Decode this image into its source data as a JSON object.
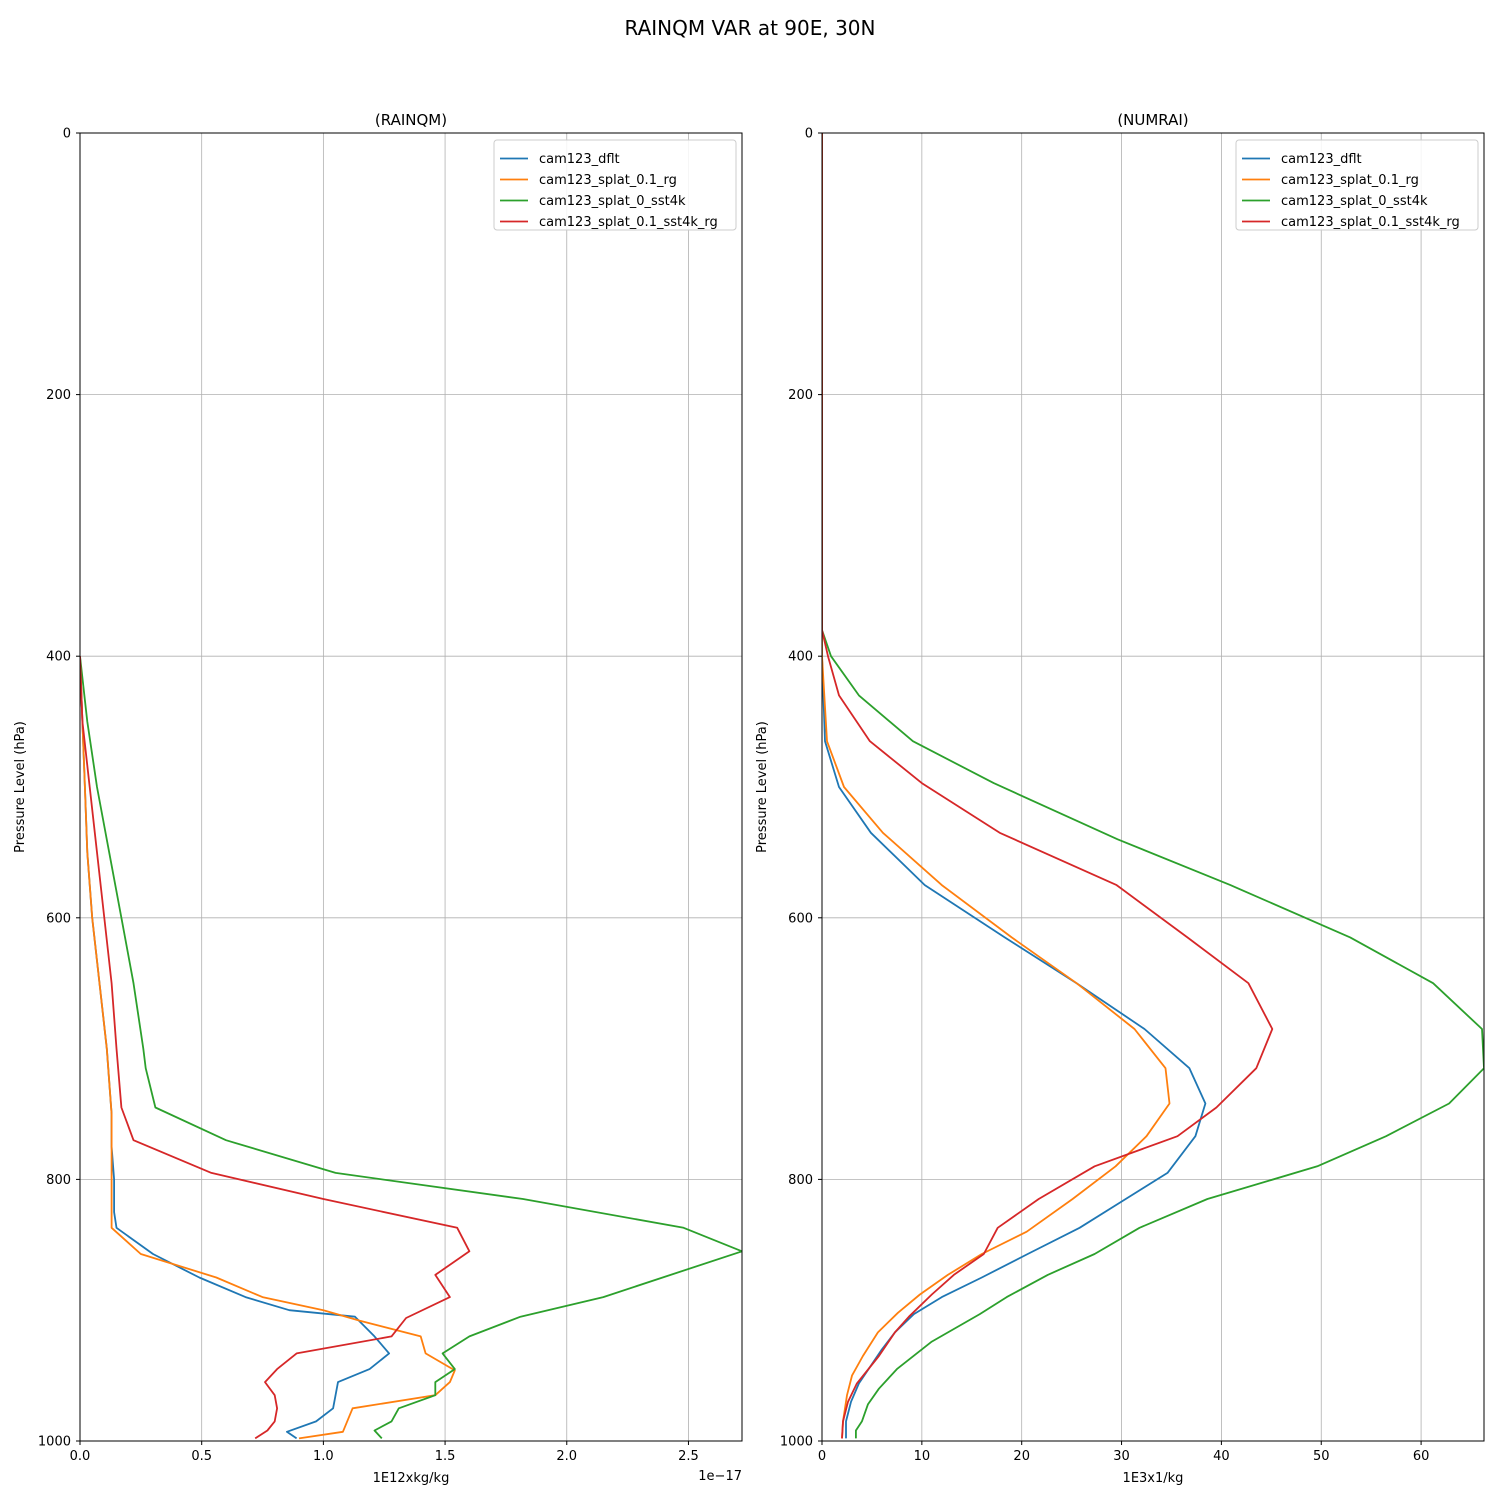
{
  "figure_title": "RAINQM VAR at 90E, 30N",
  "colors": {
    "cam123_dflt": "#1f77b4",
    "cam123_splat_0.1_rg": "#ff7f0e",
    "cam123_splat_0_sst4k": "#2ca02c",
    "cam123_splat_0.1_sst4k_rg": "#d62728"
  },
  "chart_data": [
    {
      "type": "line",
      "title": "(RAINQM)",
      "xlabel": "1E12xkg/kg",
      "ylabel": "Pressure Level (hPa)",
      "x_offset_text": "1e−17",
      "xlim": [
        0,
        2.72
      ],
      "ylim": [
        1000,
        0
      ],
      "y_inverted": true,
      "xticks": [
        0,
        0.5,
        1.0,
        1.5,
        2.0,
        2.5
      ],
      "xtick_labels": [
        "0.0",
        "0.5",
        "1.0",
        "1.5",
        "2.0",
        "2.5"
      ],
      "yticks": [
        0,
        200,
        400,
        600,
        800,
        1000
      ],
      "ytick_labels": [
        "0",
        "200",
        "400",
        "600",
        "800",
        "1000"
      ],
      "grid": true,
      "legend_position": "upper-right",
      "series": [
        {
          "name": "cam123_dflt",
          "points": [
            [
              0,
              400
            ],
            [
              0.01,
              450
            ],
            [
              0.02,
              500
            ],
            [
              0.03,
              550
            ],
            [
              0.05,
              600
            ],
            [
              0.08,
              650
            ],
            [
              0.11,
              700
            ],
            [
              0.12,
              725
            ],
            [
              0.13,
              750
            ],
            [
              0.13,
              775
            ],
            [
              0.14,
              800
            ],
            [
              0.14,
              825
            ],
            [
              0.15,
              837
            ],
            [
              0.3,
              857
            ],
            [
              0.49,
              875
            ],
            [
              0.68,
              890
            ],
            [
              0.86,
              900
            ],
            [
              1.13,
              905
            ],
            [
              1.21,
              920
            ],
            [
              1.27,
              933
            ],
            [
              1.19,
              945
            ],
            [
              1.06,
              955
            ],
            [
              1.04,
              975
            ],
            [
              0.97,
              985
            ],
            [
              0.85,
              993
            ],
            [
              0.89,
              998
            ]
          ]
        },
        {
          "name": "cam123_splat_0.1_rg",
          "points": [
            [
              0,
              400
            ],
            [
              0.01,
              450
            ],
            [
              0.02,
              500
            ],
            [
              0.03,
              550
            ],
            [
              0.05,
              600
            ],
            [
              0.08,
              650
            ],
            [
              0.11,
              700
            ],
            [
              0.12,
              725
            ],
            [
              0.13,
              750
            ],
            [
              0.13,
              775
            ],
            [
              0.13,
              800
            ],
            [
              0.13,
              820
            ],
            [
              0.13,
              837
            ],
            [
              0.25,
              857
            ],
            [
              0.56,
              875
            ],
            [
              0.75,
              890
            ],
            [
              1.0,
              900
            ],
            [
              1.15,
              908
            ],
            [
              1.4,
              920
            ],
            [
              1.42,
              933
            ],
            [
              1.54,
              946
            ],
            [
              1.52,
              955
            ],
            [
              1.46,
              965
            ],
            [
              1.12,
              975
            ],
            [
              1.08,
              993
            ],
            [
              0.9,
              998
            ]
          ]
        },
        {
          "name": "cam123_splat_0_sst4k",
          "points": [
            [
              0,
              400
            ],
            [
              0.03,
              450
            ],
            [
              0.07,
              500
            ],
            [
              0.12,
              550
            ],
            [
              0.17,
              600
            ],
            [
              0.22,
              650
            ],
            [
              0.26,
              700
            ],
            [
              0.27,
              715
            ],
            [
              0.31,
              745
            ],
            [
              0.6,
              770
            ],
            [
              1.05,
              795
            ],
            [
              1.82,
              815
            ],
            [
              2.48,
              837
            ],
            [
              2.72,
              855
            ],
            [
              2.15,
              890
            ],
            [
              1.81,
              905
            ],
            [
              1.6,
              920
            ],
            [
              1.49,
              933
            ],
            [
              1.54,
              945
            ],
            [
              1.46,
              955
            ],
            [
              1.46,
              965
            ],
            [
              1.31,
              975
            ],
            [
              1.28,
              985
            ],
            [
              1.21,
              992
            ],
            [
              1.24,
              998
            ]
          ]
        },
        {
          "name": "cam123_splat_0.1_sst4k_rg",
          "points": [
            [
              0,
              400
            ],
            [
              0.01,
              450
            ],
            [
              0.04,
              500
            ],
            [
              0.07,
              550
            ],
            [
              0.1,
              600
            ],
            [
              0.13,
              650
            ],
            [
              0.15,
              700
            ],
            [
              0.17,
              745
            ],
            [
              0.22,
              770
            ],
            [
              0.54,
              795
            ],
            [
              1.0,
              815
            ],
            [
              1.55,
              837
            ],
            [
              1.6,
              855
            ],
            [
              1.46,
              873
            ],
            [
              1.52,
              890
            ],
            [
              1.34,
              906
            ],
            [
              1.28,
              920
            ],
            [
              0.89,
              933
            ],
            [
              0.81,
              945
            ],
            [
              0.76,
              955
            ],
            [
              0.8,
              965
            ],
            [
              0.81,
              975
            ],
            [
              0.8,
              985
            ],
            [
              0.77,
              992
            ],
            [
              0.72,
              998
            ]
          ]
        }
      ]
    },
    {
      "type": "line",
      "title": "(NUMRAI)",
      "xlabel": "1E3x1/kg",
      "ylabel": "Pressure Level (hPa)",
      "xlim": [
        0,
        66.3
      ],
      "ylim": [
        1000,
        0
      ],
      "y_inverted": true,
      "xticks": [
        0,
        10,
        20,
        30,
        40,
        50,
        60
      ],
      "xtick_labels": [
        "0",
        "10",
        "20",
        "30",
        "40",
        "50",
        "60"
      ],
      "yticks": [
        0,
        200,
        400,
        600,
        800,
        1000
      ],
      "ytick_labels": [
        "0",
        "200",
        "400",
        "600",
        "800",
        "1000"
      ],
      "grid": true,
      "legend_position": "upper-right",
      "series": [
        {
          "name": "cam123_dflt",
          "points": [
            [
              0,
              0
            ],
            [
              0,
              200
            ],
            [
              0,
              400
            ],
            [
              0.3,
              465
            ],
            [
              1.7,
              500
            ],
            [
              4.9,
              535
            ],
            [
              10.3,
              575
            ],
            [
              18.3,
              615
            ],
            [
              25.5,
              650
            ],
            [
              32.3,
              685
            ],
            [
              36.8,
              715
            ],
            [
              38.4,
              742
            ],
            [
              37.4,
              767
            ],
            [
              34.6,
              795
            ],
            [
              30.0,
              817
            ],
            [
              25.8,
              837
            ],
            [
              20.6,
              857
            ],
            [
              16.0,
              875
            ],
            [
              12.0,
              890
            ],
            [
              9.2,
              903
            ],
            [
              7.3,
              917
            ],
            [
              6.0,
              930
            ],
            [
              3.7,
              956
            ],
            [
              2.9,
              970
            ],
            [
              2.4,
              985
            ],
            [
              2.4,
              998
            ]
          ]
        },
        {
          "name": "cam123_splat_0.1_rg",
          "points": [
            [
              0,
              0
            ],
            [
              0,
              200
            ],
            [
              0,
              400
            ],
            [
              0.5,
              465
            ],
            [
              2.2,
              500
            ],
            [
              6.1,
              535
            ],
            [
              12.0,
              575
            ],
            [
              19.0,
              615
            ],
            [
              25.5,
              650
            ],
            [
              31.3,
              685
            ],
            [
              34.4,
              715
            ],
            [
              34.8,
              742
            ],
            [
              32.5,
              767
            ],
            [
              29.4,
              790
            ],
            [
              25.1,
              815
            ],
            [
              20.5,
              840
            ],
            [
              16.0,
              857
            ],
            [
              12.6,
              873
            ],
            [
              9.8,
              888
            ],
            [
              7.6,
              902
            ],
            [
              5.6,
              917
            ],
            [
              4.1,
              935
            ],
            [
              3.0,
              950
            ],
            [
              2.5,
              965
            ],
            [
              2.1,
              985
            ],
            [
              2.0,
              998
            ]
          ]
        },
        {
          "name": "cam123_splat_0_sst4k",
          "points": [
            [
              0,
              0
            ],
            [
              0,
              200
            ],
            [
              0,
              380
            ],
            [
              0.9,
              400
            ],
            [
              3.7,
              430
            ],
            [
              9.1,
              465
            ],
            [
              17.2,
              497
            ],
            [
              29.6,
              540
            ],
            [
              40.9,
              575
            ],
            [
              52.9,
              615
            ],
            [
              61.2,
              650
            ],
            [
              66.1,
              685
            ],
            [
              66.3,
              715
            ],
            [
              62.8,
              742
            ],
            [
              56.5,
              767
            ],
            [
              49.6,
              790
            ],
            [
              38.6,
              815
            ],
            [
              31.8,
              837
            ],
            [
              27.3,
              857
            ],
            [
              22.6,
              873
            ],
            [
              18.5,
              890
            ],
            [
              15.8,
              903
            ],
            [
              11.0,
              924
            ],
            [
              7.5,
              945
            ],
            [
              5.7,
              960
            ],
            [
              4.6,
              972
            ],
            [
              4.0,
              985
            ],
            [
              3.4,
              992
            ],
            [
              3.4,
              998
            ]
          ]
        },
        {
          "name": "cam123_splat_0.1_sst4k_rg",
          "points": [
            [
              0,
              0
            ],
            [
              0,
              200
            ],
            [
              0,
              380
            ],
            [
              0.6,
              400
            ],
            [
              1.7,
              430
            ],
            [
              4.8,
              465
            ],
            [
              10.0,
              497
            ],
            [
              17.8,
              535
            ],
            [
              29.5,
              575
            ],
            [
              36.6,
              615
            ],
            [
              42.7,
              650
            ],
            [
              45.1,
              685
            ],
            [
              43.5,
              715
            ],
            [
              39.5,
              745
            ],
            [
              35.6,
              767
            ],
            [
              27.3,
              790
            ],
            [
              21.7,
              815
            ],
            [
              17.6,
              837
            ],
            [
              16.2,
              857
            ],
            [
              13.2,
              873
            ],
            [
              11.0,
              888
            ],
            [
              8.7,
              905
            ],
            [
              7.3,
              917
            ],
            [
              5.7,
              935
            ],
            [
              3.5,
              956
            ],
            [
              2.6,
              970
            ],
            [
              2.1,
              985
            ],
            [
              2.0,
              998
            ]
          ]
        }
      ]
    }
  ]
}
